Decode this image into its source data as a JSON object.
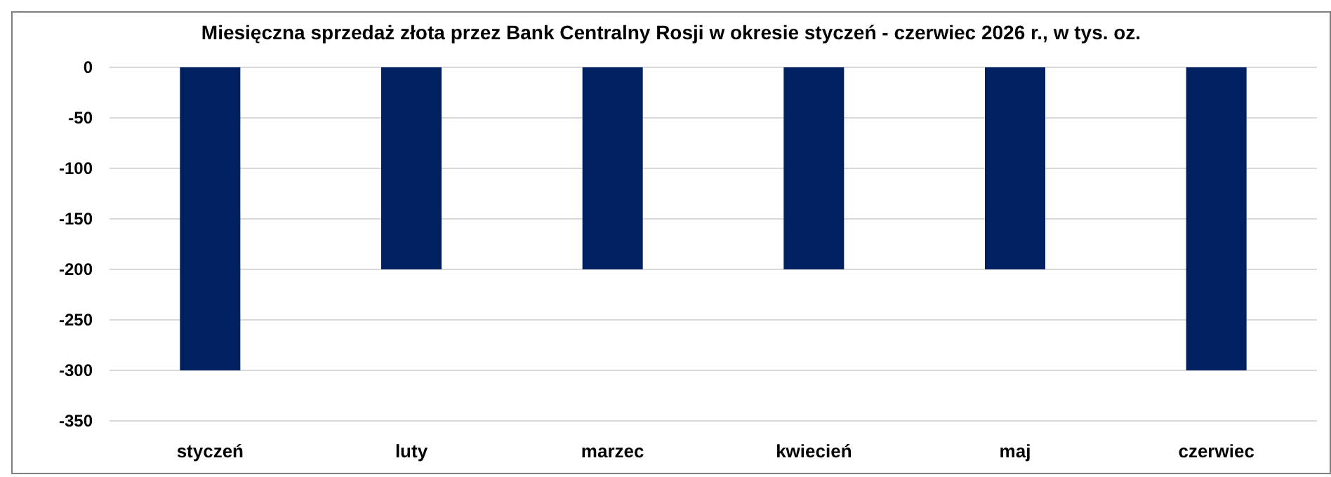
{
  "chart_data": {
    "type": "bar",
    "title": "Miesięczna sprzedaż złota przez Bank Centralny Rosji w okresie styczeń - czerwiec 2026 r., w tys. oz.",
    "categories": [
      "styczeń",
      "luty",
      "marzec",
      "kwiecień",
      "maj",
      "czerwiec"
    ],
    "values": [
      -300,
      -200,
      -200,
      -200,
      -200,
      -300
    ],
    "color": "#002060",
    "ylim": [
      -350,
      0
    ],
    "yticks": [
      -350,
      -300,
      -250,
      -200,
      -150,
      -100,
      -50,
      0
    ],
    "grid": "y"
  }
}
